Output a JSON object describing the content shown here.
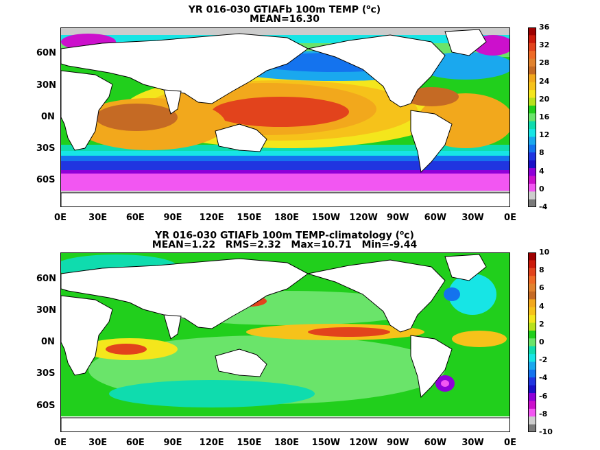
{
  "panels": [
    {
      "title": "YR 016-030 GTIAFb 100m TEMP",
      "unit_open": " (",
      "unit_sup": "o",
      "unit_close": "c)",
      "stats": "MEAN=16.30",
      "lat_ticks": [
        "60N",
        "30N",
        "0N",
        "30S",
        "60S"
      ],
      "lon_ticks": [
        "0E",
        "30E",
        "60E",
        "90E",
        "120E",
        "150E",
        "180E",
        "150W",
        "120W",
        "90W",
        "60W",
        "30W",
        "0E"
      ],
      "colorbar_ticks": [
        "36",
        "32",
        "28",
        "24",
        "20",
        "16",
        "12",
        "8",
        "4",
        "0",
        "-4"
      ],
      "colorbar_range": [
        -4,
        36
      ]
    },
    {
      "title": "YR 016-030 GTIAFb 100m TEMP-climatology",
      "unit_open": " (",
      "unit_sup": "o",
      "unit_close": "c)",
      "stats": "MEAN=1.22   RMS=2.32   Max=10.71   Min=-9.44",
      "lat_ticks": [
        "60N",
        "30N",
        "0N",
        "30S",
        "60S"
      ],
      "lon_ticks": [
        "0E",
        "30E",
        "60E",
        "90E",
        "120E",
        "150E",
        "180E",
        "150W",
        "120W",
        "90W",
        "60W",
        "30W",
        "0E"
      ],
      "colorbar_ticks": [
        "10",
        "8",
        "6",
        "4",
        "2",
        "0",
        "-2",
        "-4",
        "-6",
        "-8",
        "-10"
      ],
      "colorbar_range": [
        -10,
        10
      ]
    }
  ],
  "colors": {
    "colorbar_top_to_bottom": [
      "#9e0000",
      "#cc1a0a",
      "#e2431c",
      "#ee6a26",
      "#e1822e",
      "#c56a24",
      "#f2a81c",
      "#f6c21a",
      "#f4e61c",
      "#b8e11c",
      "#21cf1c",
      "#6ae46a",
      "#0fdcae",
      "#17e5e5",
      "#1aa8ee",
      "#1473ee",
      "#2035e0",
      "#1a10c8",
      "#8f00d8",
      "#cc10cc",
      "#f256f2",
      "#cdcdcd",
      "#7a7a7a"
    ],
    "land": "#ffffff",
    "missing": "#cccccc"
  }
}
